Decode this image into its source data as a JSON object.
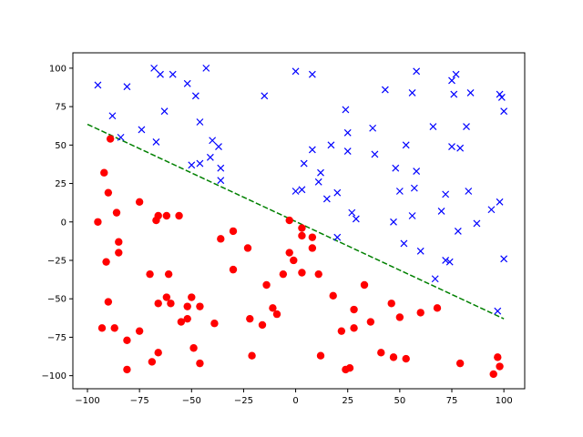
{
  "chart_data": {
    "type": "scatter",
    "title": "",
    "xlabel": "",
    "ylabel": "",
    "xlim": [
      -107,
      110
    ],
    "ylim": [
      -108.5,
      110
    ],
    "xticks": [
      -100,
      -75,
      -50,
      -25,
      0,
      25,
      50,
      75,
      100
    ],
    "yticks": [
      -100,
      -75,
      -50,
      -25,
      0,
      25,
      50,
      75,
      100
    ],
    "xtick_labels": [
      "−100",
      "−75",
      "−50",
      "−25",
      "0",
      "25",
      "50",
      "75",
      "100"
    ],
    "ytick_labels": [
      "−100",
      "−75",
      "−50",
      "−25",
      "0",
      "25",
      "50",
      "75",
      "100"
    ],
    "grid": false,
    "legend": "none",
    "series": [
      {
        "marker": "x",
        "color": "#0000ff",
        "points": [
          [
            -95,
            89
          ],
          [
            -88,
            69
          ],
          [
            -84,
            55
          ],
          [
            -81,
            88
          ],
          [
            -74,
            60
          ],
          [
            -68,
            100
          ],
          [
            -67,
            52
          ],
          [
            -65,
            96
          ],
          [
            -63,
            72
          ],
          [
            -59,
            96
          ],
          [
            -52,
            90
          ],
          [
            -50,
            37
          ],
          [
            -48,
            82
          ],
          [
            -46,
            65
          ],
          [
            -46,
            38
          ],
          [
            -43,
            100
          ],
          [
            -41,
            42
          ],
          [
            -40,
            53
          ],
          [
            -37,
            49
          ],
          [
            -36,
            35
          ],
          [
            -36,
            27
          ],
          [
            -15,
            82
          ],
          [
            0,
            98
          ],
          [
            0,
            20
          ],
          [
            3,
            21
          ],
          [
            4,
            38
          ],
          [
            8,
            47
          ],
          [
            8,
            96
          ],
          [
            11,
            26
          ],
          [
            12,
            32
          ],
          [
            15,
            15
          ],
          [
            17,
            50
          ],
          [
            20,
            -10
          ],
          [
            20,
            19
          ],
          [
            24,
            73
          ],
          [
            25,
            58
          ],
          [
            25,
            46
          ],
          [
            27,
            6
          ],
          [
            29,
            2
          ],
          [
            37,
            61
          ],
          [
            38,
            44
          ],
          [
            43,
            86
          ],
          [
            47,
            0
          ],
          [
            48,
            35
          ],
          [
            50,
            20
          ],
          [
            52,
            -14
          ],
          [
            53,
            50
          ],
          [
            56,
            4
          ],
          [
            56,
            84
          ],
          [
            57,
            22
          ],
          [
            58,
            98
          ],
          [
            58,
            33
          ],
          [
            60,
            -19
          ],
          [
            66,
            62
          ],
          [
            67,
            -37
          ],
          [
            70,
            7
          ],
          [
            72,
            -25
          ],
          [
            72,
            18
          ],
          [
            74,
            -26
          ],
          [
            75,
            49
          ],
          [
            75,
            92
          ],
          [
            76,
            83
          ],
          [
            77,
            96
          ],
          [
            78,
            -6
          ],
          [
            79,
            48
          ],
          [
            82,
            62
          ],
          [
            83,
            20
          ],
          [
            84,
            84
          ],
          [
            87,
            -1
          ],
          [
            94,
            8
          ],
          [
            97,
            -58
          ],
          [
            98,
            13
          ],
          [
            98,
            83
          ],
          [
            99,
            81
          ],
          [
            100,
            72
          ],
          [
            100,
            -24
          ]
        ]
      },
      {
        "marker": "o",
        "color": "#ff0000",
        "points": [
          [
            -95,
            0
          ],
          [
            -93,
            -69
          ],
          [
            -92,
            32
          ],
          [
            -91,
            -26
          ],
          [
            -90,
            19
          ],
          [
            -90,
            -52
          ],
          [
            -89,
            54
          ],
          [
            -87,
            -69
          ],
          [
            -86,
            6
          ],
          [
            -85,
            -13
          ],
          [
            -85,
            -20
          ],
          [
            -81,
            -77
          ],
          [
            -81,
            -96
          ],
          [
            -75,
            -71
          ],
          [
            -75,
            13
          ],
          [
            -70,
            -34
          ],
          [
            -69,
            -91
          ],
          [
            -67,
            1
          ],
          [
            -66,
            4
          ],
          [
            -66,
            -53
          ],
          [
            -66,
            -85
          ],
          [
            -62,
            4
          ],
          [
            -62,
            -49
          ],
          [
            -61,
            -34
          ],
          [
            -60,
            -53
          ],
          [
            -56,
            4
          ],
          [
            -55,
            -65
          ],
          [
            -52,
            -55
          ],
          [
            -52,
            -63
          ],
          [
            -50,
            -49
          ],
          [
            -49,
            -82
          ],
          [
            -46,
            -55
          ],
          [
            -46,
            -92
          ],
          [
            -39,
            -66
          ],
          [
            -36,
            -11
          ],
          [
            -30,
            -6
          ],
          [
            -30,
            -31
          ],
          [
            -23,
            -17
          ],
          [
            -22,
            -63
          ],
          [
            -21,
            -87
          ],
          [
            -16,
            -67
          ],
          [
            -14,
            -41
          ],
          [
            -11,
            -56
          ],
          [
            -9,
            -60
          ],
          [
            -6,
            -34
          ],
          [
            -3,
            1
          ],
          [
            -3,
            -20
          ],
          [
            -1,
            -25
          ],
          [
            3,
            -4
          ],
          [
            3,
            -9
          ],
          [
            3,
            -33
          ],
          [
            8,
            -10
          ],
          [
            8,
            -17
          ],
          [
            11,
            -34
          ],
          [
            12,
            -87
          ],
          [
            18,
            -48
          ],
          [
            22,
            -71
          ],
          [
            24,
            -96
          ],
          [
            26,
            -95
          ],
          [
            28,
            -57
          ],
          [
            28,
            -69
          ],
          [
            33,
            -41
          ],
          [
            36,
            -65
          ],
          [
            41,
            -85
          ],
          [
            46,
            -53
          ],
          [
            47,
            -88
          ],
          [
            50,
            -62
          ],
          [
            53,
            -89
          ],
          [
            60,
            -59
          ],
          [
            68,
            -56
          ],
          [
            79,
            -92
          ],
          [
            95,
            -99
          ],
          [
            97,
            -88
          ],
          [
            98,
            -94
          ]
        ]
      }
    ],
    "reference_line": {
      "style": "dashed",
      "color": "#008000",
      "x": [
        -100,
        100
      ],
      "y": [
        63.5,
        -63
      ]
    }
  }
}
